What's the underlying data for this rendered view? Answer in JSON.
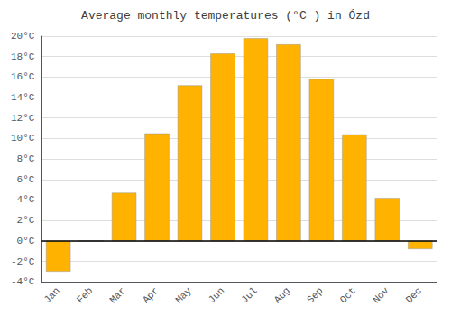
{
  "chart_data": {
    "type": "bar",
    "title": "Average monthly temperatures (°C ) in Ózd",
    "categories": [
      "Jan",
      "Feb",
      "Mar",
      "Apr",
      "May",
      "Jun",
      "Jul",
      "Aug",
      "Sep",
      "Oct",
      "Nov",
      "Dec"
    ],
    "values": [
      -3.0,
      0,
      4.7,
      10.5,
      15.2,
      18.3,
      19.8,
      19.2,
      15.8,
      10.4,
      4.2,
      -0.8
    ],
    "color": "#FFB300",
    "ylim": [
      -4,
      20
    ],
    "yticks": [
      {
        "value": -4,
        "label": "-4°C"
      },
      {
        "value": -2,
        "label": "-2°C"
      },
      {
        "value": 0,
        "label": "0°C"
      },
      {
        "value": 2,
        "label": "2°C"
      },
      {
        "value": 4,
        "label": "4°C"
      },
      {
        "value": 6,
        "label": "6°C"
      },
      {
        "value": 8,
        "label": "8°C"
      },
      {
        "value": 10,
        "label": "10°C"
      },
      {
        "value": 12,
        "label": "12°C"
      },
      {
        "value": 14,
        "label": "14°C"
      },
      {
        "value": 16,
        "label": "16°C"
      },
      {
        "value": 18,
        "label": "18°C"
      },
      {
        "value": 20,
        "label": "20°C"
      }
    ],
    "grid": true
  }
}
